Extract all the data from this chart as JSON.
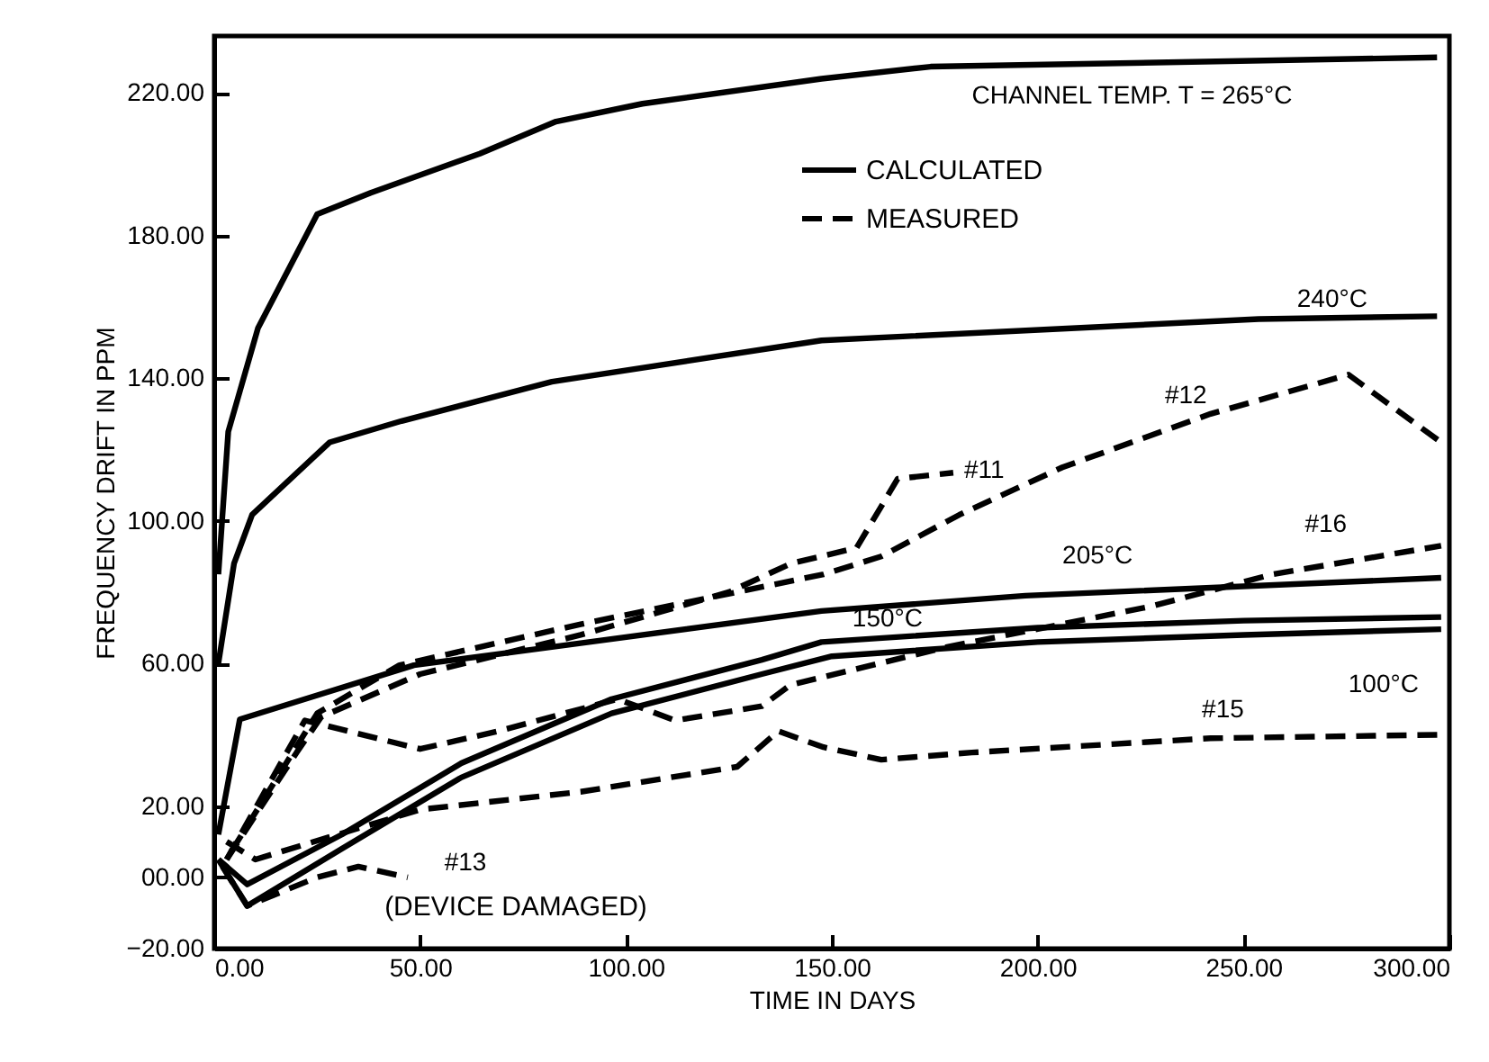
{
  "chart_data": {
    "type": "line",
    "xlabel": "TIME IN DAYS",
    "ylabel": "FREQUENCY DRIFT IN PPM",
    "xlim": [
      0,
      300
    ],
    "ylim": [
      -20,
      236
    ],
    "xticks": [
      {
        "value": 0,
        "label": "0.00"
      },
      {
        "value": 50,
        "label": "50.00"
      },
      {
        "value": 100,
        "label": "100.00"
      },
      {
        "value": 150,
        "label": "150.00"
      },
      {
        "value": 200,
        "label": "200.00"
      },
      {
        "value": 250,
        "label": "250.00"
      },
      {
        "value": 300,
        "label": "300.00"
      }
    ],
    "yticks": [
      {
        "value": -20,
        "label": "−20.00"
      },
      {
        "value": 0,
        "label": "00.00"
      },
      {
        "value": 20,
        "label": "20.00"
      },
      {
        "value": 60,
        "label": "60.00"
      },
      {
        "value": 100,
        "label": "100.00"
      },
      {
        "value": 140,
        "label": "140.00"
      },
      {
        "value": 180,
        "label": "180.00"
      },
      {
        "value": 220,
        "label": "220.00"
      }
    ],
    "grid": false,
    "marker": "none",
    "legend": "top right",
    "annotations": [
      "CALCULATED",
      "MEASURED",
      "(DEVICE DAMAGED)"
    ],
    "series": [
      {
        "name": "CHANNEL TEMP. T = 265°C",
        "color": "#000000",
        "line_style": "solid",
        "x": [
          1,
          3.4,
          10.6,
          25,
          38,
          64.5,
          83,
          104,
          147.5,
          174,
          297
        ],
        "values": [
          85,
          125,
          154,
          186,
          192,
          203,
          212,
          217,
          224,
          227.4,
          230
        ]
      },
      {
        "name": "240°C",
        "color": "#000000",
        "line_style": "solid",
        "x": [
          1,
          4.8,
          9.2,
          28,
          45.5,
          82,
          147.5,
          253.7,
          297
        ],
        "values": [
          60,
          88,
          101.7,
          122,
          128,
          139,
          150.6,
          156.6,
          157.4
        ]
      },
      {
        "name": "205°C",
        "color": "#000000",
        "line_style": "solid",
        "x": [
          1,
          6.2,
          48.5,
          82,
          147.5,
          197,
          298
        ],
        "values": [
          12,
          44.3,
          59.5,
          64.6,
          74.7,
          79,
          84
        ]
      },
      {
        "name": "150°C",
        "color": "#000000",
        "line_style": "solid",
        "x": [
          1,
          8,
          31,
          60,
          96.5,
          133,
          147.5,
          200,
          250,
          298
        ],
        "values": [
          5,
          -2,
          12,
          32,
          50,
          61,
          66,
          70,
          72,
          73
        ]
      },
      {
        "name": "100°C",
        "color": "#000000",
        "line_style": "solid",
        "x": [
          1,
          8,
          31,
          60,
          96.5,
          133,
          150,
          200,
          250,
          298
        ],
        "values": [
          5,
          -8,
          8,
          28,
          46,
          57,
          62,
          66,
          68,
          69.6
        ]
      },
      {
        "name": "#11",
        "color": "#000000",
        "line_style": "dashed",
        "x": [
          3,
          20,
          26,
          50,
          89,
          125,
          140,
          156,
          166,
          179.5
        ],
        "values": [
          5,
          35,
          45,
          57,
          68,
          80,
          88,
          92.4,
          111.8,
          113.5
        ]
      },
      {
        "name": "#12",
        "color": "#000000",
        "line_style": "dashed",
        "x": [
          4,
          25,
          45,
          89,
          148,
          162,
          181,
          206,
          242,
          275.5,
          298
        ],
        "values": [
          7,
          46,
          59.5,
          71,
          85,
          90,
          101.7,
          115,
          130,
          141,
          122
        ]
      },
      {
        "name": "#13",
        "color": "#000000",
        "line_style": "dashed",
        "x": [
          2,
          8,
          25,
          35,
          47
        ],
        "values": [
          3,
          -8,
          0,
          3,
          0
        ]
      },
      {
        "name": "#15",
        "color": "#000000",
        "line_style": "dashed",
        "x": [
          3,
          10,
          30,
          50,
          89,
          127,
          137,
          148,
          162,
          184,
          242,
          298.7
        ],
        "values": [
          10,
          5,
          12,
          19,
          24,
          31,
          41,
          36.5,
          33,
          35,
          39,
          40
        ]
      },
      {
        "name": "#16",
        "color": "#000000",
        "line_style": "dashed",
        "x": [
          3,
          22,
          50,
          69,
          98,
          112,
          133,
          140,
          178,
          227.5,
          257,
          298
        ],
        "values": [
          5,
          44,
          36,
          41,
          50,
          44,
          48,
          54,
          64.6,
          76,
          85,
          93
        ]
      }
    ]
  }
}
